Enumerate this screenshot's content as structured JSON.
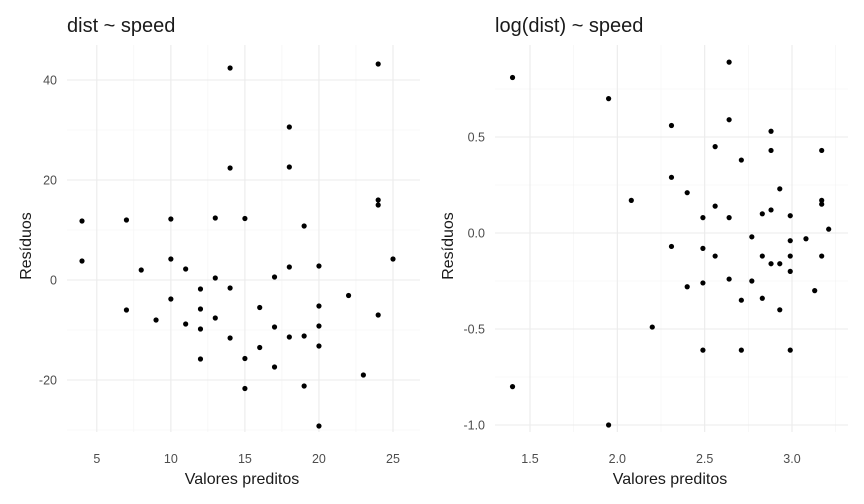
{
  "chart_data": [
    {
      "type": "scatter",
      "title": "dist ~ speed",
      "xlabel": "Valores preditos",
      "ylabel": "Resíduos",
      "xlim": [
        3,
        26
      ],
      "ylim": [
        -30,
        46
      ],
      "xticks": [
        5,
        10,
        15,
        20,
        25
      ],
      "yticks": [
        -20,
        0,
        20,
        40
      ],
      "xtick_labels": [
        "5",
        "10",
        "15",
        "20",
        "25"
      ],
      "ytick_labels": [
        "-20",
        "0",
        "20",
        "40"
      ],
      "grid": true,
      "series": [
        {
          "points": [
            [
              4,
              11.8
            ],
            [
              4,
              3.8
            ],
            [
              7,
              12.0
            ],
            [
              7,
              -6.0
            ],
            [
              8,
              2.0
            ],
            [
              9,
              -8.0
            ],
            [
              10,
              12.2
            ],
            [
              10,
              4.2
            ],
            [
              10,
              -3.8
            ],
            [
              11,
              2.2
            ],
            [
              11,
              -8.8
            ],
            [
              12,
              -1.8
            ],
            [
              12,
              -5.8
            ],
            [
              12,
              -9.8
            ],
            [
              12,
              -15.8
            ],
            [
              13,
              12.4
            ],
            [
              13,
              0.4
            ],
            [
              13,
              -7.6
            ],
            [
              14,
              42.4
            ],
            [
              14,
              22.4
            ],
            [
              14,
              -1.6
            ],
            [
              14,
              -11.6
            ],
            [
              15,
              12.3
            ],
            [
              15,
              -15.7
            ],
            [
              15,
              -21.7
            ],
            [
              16,
              -5.5
            ],
            [
              16,
              -13.5
            ],
            [
              17,
              0.6
            ],
            [
              17,
              -9.4
            ],
            [
              17,
              -17.4
            ],
            [
              18,
              30.6
            ],
            [
              18,
              22.6
            ],
            [
              18,
              2.6
            ],
            [
              18,
              -11.4
            ],
            [
              19,
              10.8
            ],
            [
              19,
              -11.2
            ],
            [
              19,
              -21.2
            ],
            [
              20,
              2.8
            ],
            [
              20,
              -5.2
            ],
            [
              20,
              -9.2
            ],
            [
              20,
              -13.2
            ],
            [
              20,
              -29.2
            ],
            [
              22,
              -3.1
            ],
            [
              23,
              -19.0
            ],
            [
              24,
              43.2
            ],
            [
              24,
              16.0
            ],
            [
              24,
              15.0
            ],
            [
              24,
              -7.0
            ],
            [
              25,
              4.2
            ]
          ]
        }
      ]
    },
    {
      "type": "scatter",
      "title": "log(dist) ~ speed",
      "xlabel": "Valores preditos",
      "ylabel": "Resíduos",
      "xlim": [
        1.33,
        3.25
      ],
      "ylim": [
        -1.05,
        0.93
      ],
      "xticks": [
        1.5,
        2.0,
        2.5,
        3.0
      ],
      "yticks": [
        -1.0,
        -0.5,
        0.0,
        0.5
      ],
      "xtick_labels": [
        "1.5",
        "2.0",
        "2.5",
        "3.0"
      ],
      "ytick_labels": [
        "-1.0",
        "-0.5",
        "0.0",
        "0.5"
      ],
      "grid": true,
      "series": [
        {
          "points": [
            [
              1.4,
              0.81
            ],
            [
              1.4,
              -0.8
            ],
            [
              1.95,
              0.7
            ],
            [
              1.95,
              -1.0
            ],
            [
              2.08,
              0.17
            ],
            [
              2.2,
              -0.49
            ],
            [
              2.31,
              0.56
            ],
            [
              2.31,
              0.29
            ],
            [
              2.31,
              -0.07
            ],
            [
              2.4,
              0.21
            ],
            [
              2.4,
              -0.28
            ],
            [
              2.49,
              0.08
            ],
            [
              2.49,
              -0.08
            ],
            [
              2.49,
              -0.26
            ],
            [
              2.49,
              -0.61
            ],
            [
              2.56,
              0.45
            ],
            [
              2.56,
              0.14
            ],
            [
              2.56,
              -0.12
            ],
            [
              2.64,
              0.89
            ],
            [
              2.64,
              0.59
            ],
            [
              2.64,
              0.08
            ],
            [
              2.64,
              -0.24
            ],
            [
              2.71,
              0.38
            ],
            [
              2.71,
              -0.35
            ],
            [
              2.71,
              -0.61
            ],
            [
              2.77,
              -0.02
            ],
            [
              2.77,
              -0.25
            ],
            [
              2.83,
              0.1
            ],
            [
              2.83,
              -0.12
            ],
            [
              2.83,
              -0.34
            ],
            [
              2.88,
              0.53
            ],
            [
              2.88,
              0.43
            ],
            [
              2.88,
              0.12
            ],
            [
              2.88,
              -0.16
            ],
            [
              2.93,
              0.23
            ],
            [
              2.93,
              -0.16
            ],
            [
              2.93,
              -0.4
            ],
            [
              2.99,
              0.09
            ],
            [
              2.99,
              -0.04
            ],
            [
              2.99,
              -0.12
            ],
            [
              2.99,
              -0.2
            ],
            [
              2.99,
              -0.61
            ],
            [
              3.08,
              -0.03
            ],
            [
              3.13,
              -0.3
            ],
            [
              3.17,
              0.43
            ],
            [
              3.17,
              0.17
            ],
            [
              3.17,
              0.15
            ],
            [
              3.17,
              -0.12
            ],
            [
              3.21,
              0.02
            ]
          ]
        }
      ]
    }
  ]
}
